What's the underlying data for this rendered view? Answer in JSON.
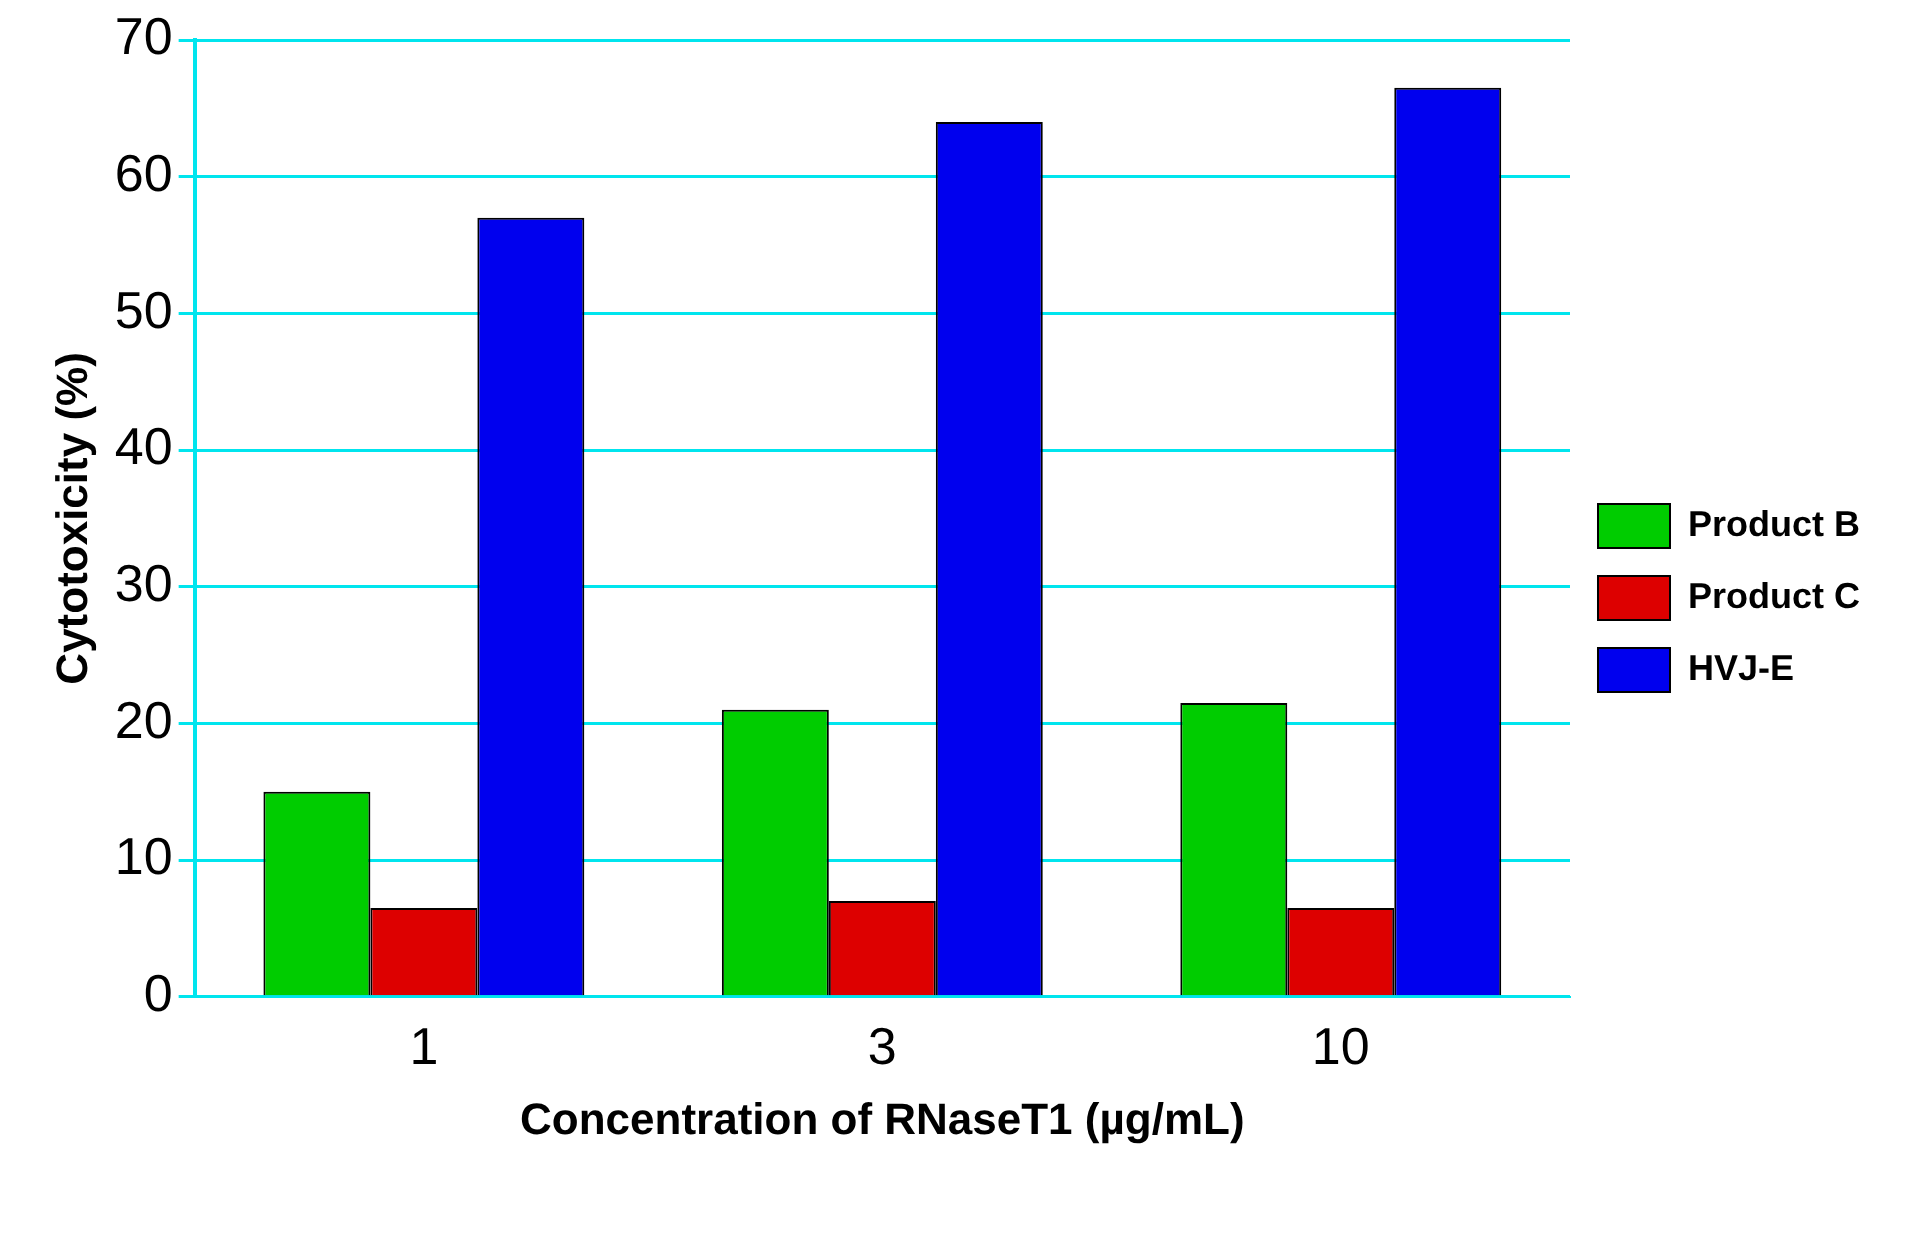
{
  "chart_data": {
    "type": "bar",
    "xlabel": "Concentration of RNaseT1 (µg/mL)",
    "ylabel": "Cytotoxicity (%)",
    "categories": [
      "1",
      "3",
      "10"
    ],
    "series": [
      {
        "name": "Product B",
        "color": "#00cc00",
        "values": [
          15,
          21,
          21.5
        ]
      },
      {
        "name": "Product C",
        "color": "#dd0000",
        "values": [
          6.5,
          7,
          6.5
        ]
      },
      {
        "name": "HVJ-E",
        "color": "#0000ee",
        "values": [
          57,
          64,
          66.5
        ]
      }
    ],
    "ylim": [
      0,
      70
    ],
    "yticks": [
      0,
      10,
      20,
      30,
      40,
      50,
      60,
      70
    ],
    "grid": "y",
    "legend": "right"
  }
}
